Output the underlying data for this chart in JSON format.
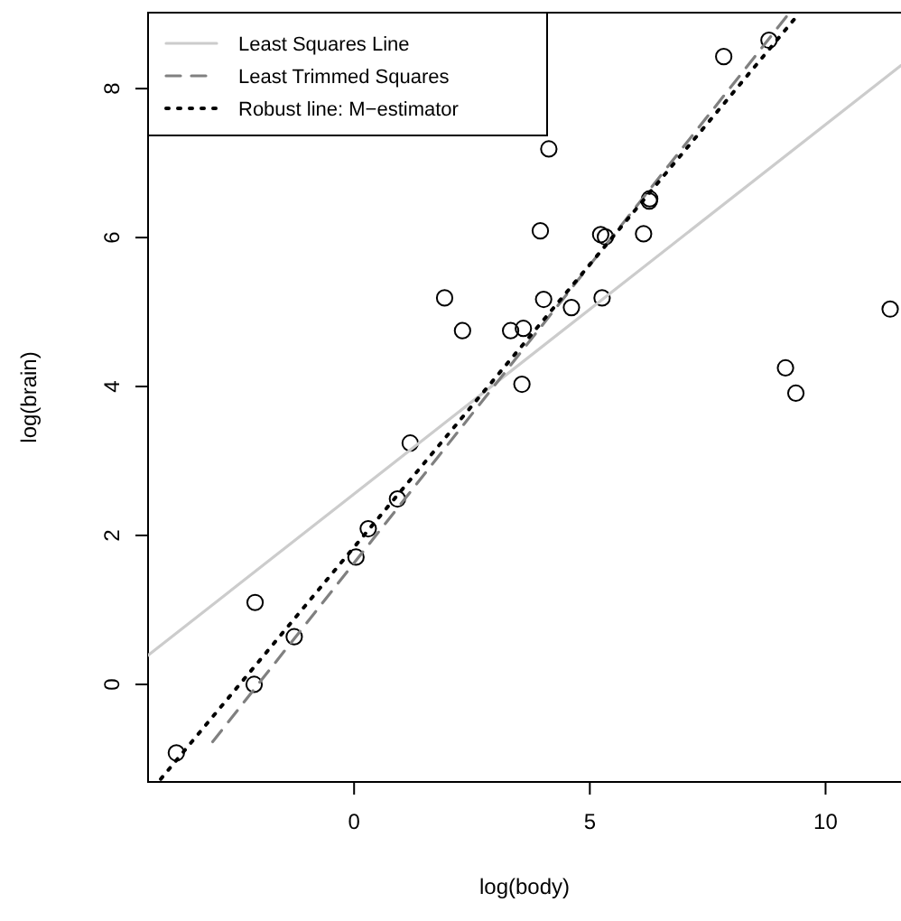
{
  "chart_data": {
    "type": "scatter",
    "xlabel": "log(body)",
    "ylabel": "log(brain)",
    "xlim": [
      -4.37,
      11.6
    ],
    "ylim": [
      -1.31,
      9.02
    ],
    "xticks": [
      0,
      5,
      10
    ],
    "yticks": [
      0,
      2,
      4,
      6,
      8
    ],
    "grid": false,
    "legend": "top left",
    "series": [
      {
        "color": "#000000",
        "marker": "circle",
        "x": [
          0.3,
          6.14,
          3.59,
          3.32,
          0.04,
          9.37,
          7.84,
          5.23,
          6.26,
          2.3,
          1.19,
          6.27,
          5.33,
          4.13,
          8.8,
          9.15,
          1.92,
          3.56,
          -2.12,
          -3.77,
          0.92,
          4.02,
          4.61,
          3.95,
          -1.27,
          11.37,
          -2.1,
          5.26
        ],
        "values": [
          2.09,
          6.05,
          4.78,
          4.75,
          1.71,
          3.91,
          8.43,
          6.04,
          6.49,
          4.75,
          3.24,
          6.52,
          6.01,
          7.19,
          8.65,
          4.25,
          5.19,
          4.03,
          0,
          -0.92,
          2.49,
          5.17,
          5.06,
          6.09,
          0.64,
          5.04,
          1.1,
          5.19
        ]
      },
      {
        "type": "line",
        "name": "Least Squares Line",
        "color": "#cccccc",
        "line_style": "solid",
        "marker": "none",
        "x": [
          -4.37,
          11.6
        ],
        "values": [
          0.39,
          8.31
        ]
      },
      {
        "type": "line",
        "name": "Least Trimmed Squares",
        "color": "#808080",
        "line_style": "dashed",
        "marker": "none",
        "x": [
          -3.0,
          9.2
        ],
        "values": [
          -0.77,
          8.99
        ]
      },
      {
        "type": "line",
        "name": "Robust line: M−estimator",
        "color": "#000000",
        "line_style": "dotted",
        "marker": "none",
        "x": [
          -4.1,
          9.4
        ],
        "values": [
          -1.27,
          8.98
        ]
      }
    ]
  }
}
